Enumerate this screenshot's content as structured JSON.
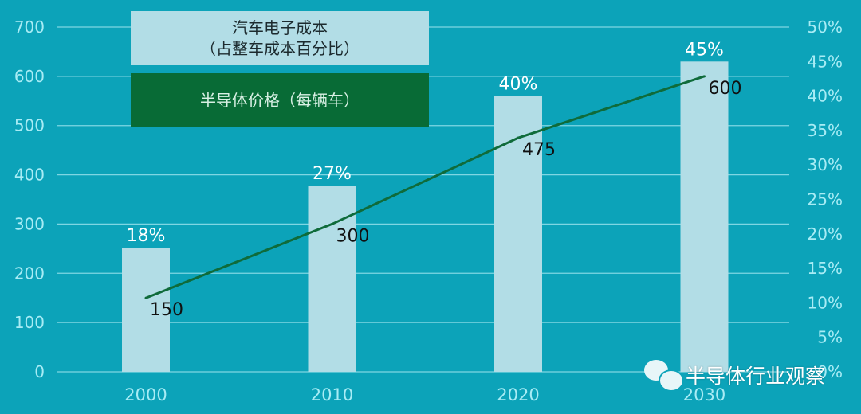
{
  "chart_data": {
    "type": "bar+line",
    "categories": [
      "2000",
      "2010",
      "2020",
      "2030"
    ],
    "series": [
      {
        "name": "汽车电子成本（占整车成本百分比）",
        "type": "bar",
        "axis": "right",
        "values": [
          18,
          27,
          40,
          45
        ],
        "labels": [
          "18%",
          "27%",
          "40%",
          "45%"
        ],
        "color": "#b2dde6"
      },
      {
        "name": "半导体价格（每辆车）",
        "type": "line",
        "axis": "left",
        "values": [
          150,
          300,
          475,
          600
        ],
        "labels": [
          "150",
          "300",
          "475",
          "600"
        ],
        "color": "#0f6b3a"
      }
    ],
    "left_axis": {
      "ylim": [
        0,
        700
      ],
      "ticks": [
        "0",
        "100",
        "200",
        "300",
        "400",
        "500",
        "600",
        "700"
      ]
    },
    "right_axis": {
      "ylim": [
        0,
        50
      ],
      "ticks": [
        "0%",
        "5%",
        "10%",
        "15%",
        "20%",
        "25%",
        "30%",
        "35%",
        "40%",
        "45%",
        "50%"
      ]
    },
    "grid": true,
    "legend_position": "top-left",
    "legend": [
      "汽车电子成本",
      "（占整车成本百分比）",
      "半导体价格（每辆车）"
    ],
    "background": "#0ca3b9"
  },
  "watermark": {
    "text": "半导体行业观察",
    "icon": "wechat-icon"
  }
}
